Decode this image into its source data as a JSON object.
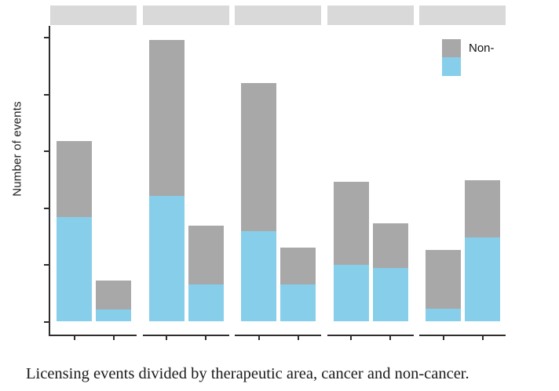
{
  "figure": {
    "ylabel": "Number of events",
    "caption": "Licensing events divided by therapeutic area, cancer and non-cancer."
  },
  "legend": {
    "items": [
      {
        "label": "Non-",
        "series": "non_cancer",
        "color": "#a8a8a8"
      },
      {
        "label": "",
        "series": "cancer",
        "color": "#87ceeb"
      }
    ]
  },
  "colors": {
    "bar_non_cancer": "#a8a8a8",
    "bar_cancer": "#87ceeb",
    "facet_strip": "#d9d9d9",
    "axis": "#2e2e2e",
    "background": "#ffffff"
  },
  "chart_data": {
    "type": "bar",
    "stacked": true,
    "faceted": true,
    "title": "",
    "xlabel": "",
    "ylabel": "Number of events",
    "ylim": [
      0,
      5.2
    ],
    "y_ticks": [
      0,
      1,
      2,
      3,
      4,
      5
    ],
    "y_tick_labels": [
      "",
      "",
      "",
      "",
      "",
      ""
    ],
    "x_tick_labels": [
      "",
      ""
    ],
    "legend_position": "top-right",
    "series_names": [
      "cancer",
      "non_cancer"
    ],
    "series_colors": {
      "cancer": "#87ceeb",
      "non_cancer": "#a8a8a8"
    },
    "value_units": "y-axis tick intervals (axis is unlabeled; values estimated from gridline spacing)",
    "facets": [
      {
        "strip_label": "",
        "bars": [
          {
            "x_label": "",
            "cancer": 1.85,
            "non_cancer": 1.34,
            "total": 3.19
          },
          {
            "x_label": "",
            "cancer": 0.22,
            "non_cancer": 0.51,
            "total": 0.73
          }
        ]
      },
      {
        "strip_label": "",
        "bars": [
          {
            "x_label": "",
            "cancer": 2.21,
            "non_cancer": 2.75,
            "total": 4.96
          },
          {
            "x_label": "",
            "cancer": 0.65,
            "non_cancer": 1.04,
            "total": 1.69
          }
        ]
      },
      {
        "strip_label": "",
        "bars": [
          {
            "x_label": "",
            "cancer": 1.6,
            "non_cancer": 2.6,
            "total": 4.2
          },
          {
            "x_label": "",
            "cancer": 0.66,
            "non_cancer": 0.65,
            "total": 1.31
          }
        ]
      },
      {
        "strip_label": "",
        "bars": [
          {
            "x_label": "",
            "cancer": 1.0,
            "non_cancer": 1.46,
            "total": 2.46
          },
          {
            "x_label": "",
            "cancer": 0.94,
            "non_cancer": 0.79,
            "total": 1.73
          }
        ]
      },
      {
        "strip_label": "",
        "bars": [
          {
            "x_label": "",
            "cancer": 0.23,
            "non_cancer": 1.04,
            "total": 1.27
          },
          {
            "x_label": "",
            "cancer": 1.49,
            "non_cancer": 1.01,
            "total": 2.5
          }
        ]
      }
    ]
  }
}
